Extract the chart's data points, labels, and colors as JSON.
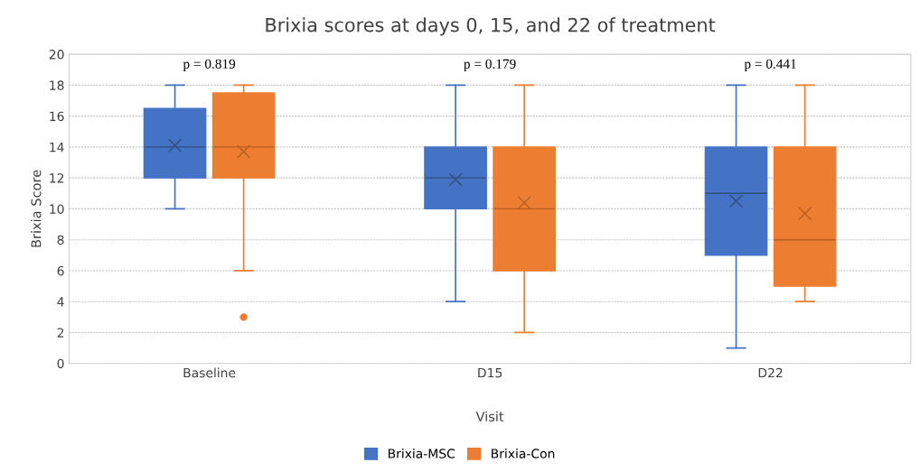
{
  "chart_data": {
    "type": "box",
    "title": "Brixia scores at days 0, 15, and 22 of treatment",
    "xlabel": "Visit",
    "ylabel": "Brixia Score",
    "categories": [
      "Baseline",
      "D15",
      "D22"
    ],
    "ylim": [
      0,
      20
    ],
    "yticks": [
      0,
      2,
      4,
      6,
      8,
      10,
      12,
      14,
      16,
      18,
      20
    ],
    "grid": "y",
    "legend": "bottom",
    "marker": "cross",
    "series": [
      {
        "name": "Brixia-MSC",
        "color": "#4472c4",
        "boxes": [
          {
            "low": 10,
            "q1": 12,
            "median": 14,
            "q3": 16.5,
            "high": 18,
            "mean": 14.1
          },
          {
            "low": 4,
            "q1": 10,
            "median": 12,
            "q3": 14,
            "high": 18,
            "mean": 11.9
          },
          {
            "low": 1,
            "q1": 7,
            "median": 11,
            "q3": 14,
            "high": 18,
            "mean": 10.5
          }
        ]
      },
      {
        "name": "Brixia-Con",
        "color": "#ed7d31",
        "boxes": [
          {
            "low": 6,
            "q1": 12,
            "median": 14,
            "q3": 17.5,
            "high": 18,
            "mean": 13.7,
            "outliers": [
              3
            ]
          },
          {
            "low": 2,
            "q1": 6,
            "median": 10,
            "q3": 14,
            "high": 18,
            "mean": 10.4
          },
          {
            "low": 4,
            "q1": 5,
            "median": 8,
            "q3": 14,
            "high": 18,
            "mean": 9.7
          }
        ]
      }
    ],
    "annotations": [
      "p = 0.819",
      "p = 0.179",
      "p = 0.441"
    ]
  }
}
